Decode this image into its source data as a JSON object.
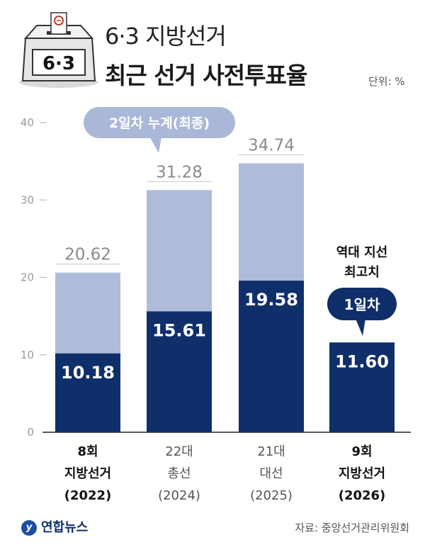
{
  "header": {
    "title_line1": "6·3 지방선거",
    "title_line2": "최근 선거 사전투표율",
    "unit": "단위: %",
    "ballot_label": "6·3"
  },
  "callouts": {
    "cumulative": "2일차 누계(최종)",
    "record_line1": "역대 지선",
    "record_line2": "최고치",
    "day1": "1일차"
  },
  "footer": {
    "logo": "연합뉴스",
    "source": "자료: 중앙선거관리위원회"
  },
  "colors": {
    "dark": "#0f2f6b",
    "light": "#aebbd9",
    "badge_bg": "#a9b8d8",
    "badge_text": "#ffffff",
    "day1_bg": "#0f2f6b"
  },
  "chart_data": {
    "type": "bar",
    "ylim": [
      0,
      40
    ],
    "yticks": [
      0,
      10,
      20,
      30,
      40
    ],
    "categories": [
      {
        "line1": "8회",
        "line2": "지방선거",
        "line3": "(2022)",
        "bold": true
      },
      {
        "line1": "22대",
        "line2": "총선",
        "line3": "(2024)",
        "bold": false
      },
      {
        "line1": "21대",
        "line2": "대선",
        "line3": "(2025)",
        "bold": false
      },
      {
        "line1": "9회",
        "line2": "지방선거",
        "line3": "(2026)",
        "bold": true
      }
    ],
    "series": [
      {
        "name": "1일차",
        "values": [
          10.18,
          15.61,
          19.58,
          11.6
        ],
        "labels": [
          "10.18",
          "15.61",
          "19.58",
          "11.60"
        ]
      },
      {
        "name": "2일차 누계(최종)",
        "values": [
          20.62,
          31.28,
          34.74,
          null
        ],
        "labels": [
          "20.62",
          "31.28",
          "34.74",
          ""
        ]
      }
    ]
  }
}
